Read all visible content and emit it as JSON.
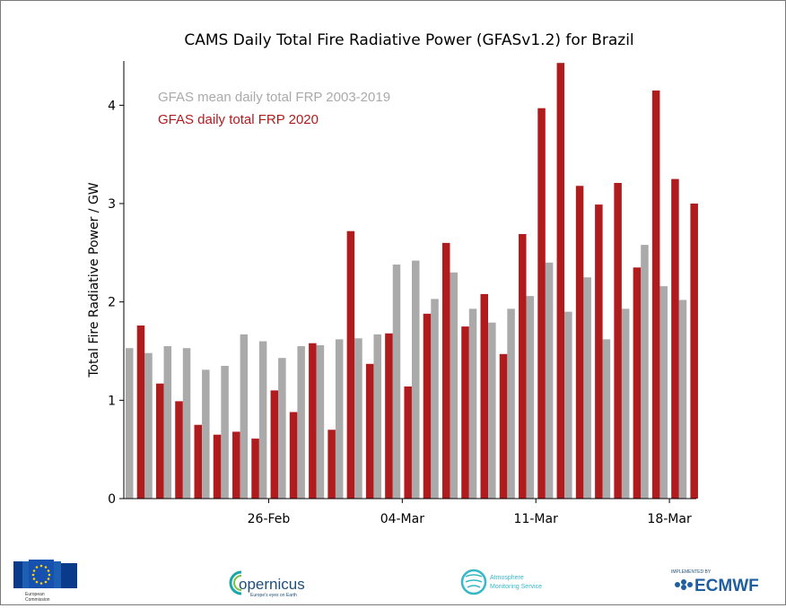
{
  "chart_data": {
    "type": "bar",
    "title": "CAMS Daily Total Fire Radiative Power (GFASv1.2) for Brazil",
    "xlabel": "",
    "ylabel": "Total Fire Radiative Power / GW",
    "ylim": [
      0,
      4.45
    ],
    "yticks": [
      0,
      1,
      2,
      3,
      4
    ],
    "xticks": [
      {
        "index": 7,
        "label": "26-Feb"
      },
      {
        "index": 14,
        "label": "04-Mar"
      },
      {
        "index": 21,
        "label": "11-Mar"
      },
      {
        "index": 28,
        "label": "18-Mar"
      }
    ],
    "legend_position": "top-left",
    "series": [
      {
        "name": "GFAS mean daily total FRP 2003-2019",
        "color": "#aaaaaa",
        "values": [
          1.53,
          1.48,
          1.55,
          1.53,
          1.31,
          1.35,
          1.67,
          1.6,
          1.43,
          1.55,
          1.56,
          1.62,
          1.63,
          1.67,
          2.38,
          2.42,
          2.03,
          2.3,
          1.93,
          1.79,
          1.93,
          2.06,
          2.4,
          1.9,
          2.25,
          1.62,
          1.93,
          2.58,
          2.16,
          2.02
        ]
      },
      {
        "name": "GFAS daily total FRP 2020",
        "color": "#b01b1e",
        "values": [
          1.76,
          1.17,
          0.99,
          0.75,
          0.65,
          0.68,
          0.61,
          1.1,
          0.88,
          1.58,
          0.7,
          2.72,
          1.37,
          1.68,
          1.14,
          1.88,
          2.6,
          1.75,
          2.08,
          1.47,
          2.69,
          3.97,
          4.43,
          3.18,
          2.99,
          3.21,
          2.35,
          4.15,
          3.25,
          3.0
        ]
      }
    ]
  },
  "logos": {
    "eu": {
      "line1": "European",
      "line2": "Commission"
    },
    "copernicus": {
      "name": "opernicus",
      "tagline": "Europe's eyes on Earth"
    },
    "atmosphere": {
      "line1": "Atmosphere",
      "line2": "Monitoring Service"
    },
    "ecmwf": {
      "tagline": "IMPLEMENTED BY",
      "name": "ECMWF"
    }
  }
}
